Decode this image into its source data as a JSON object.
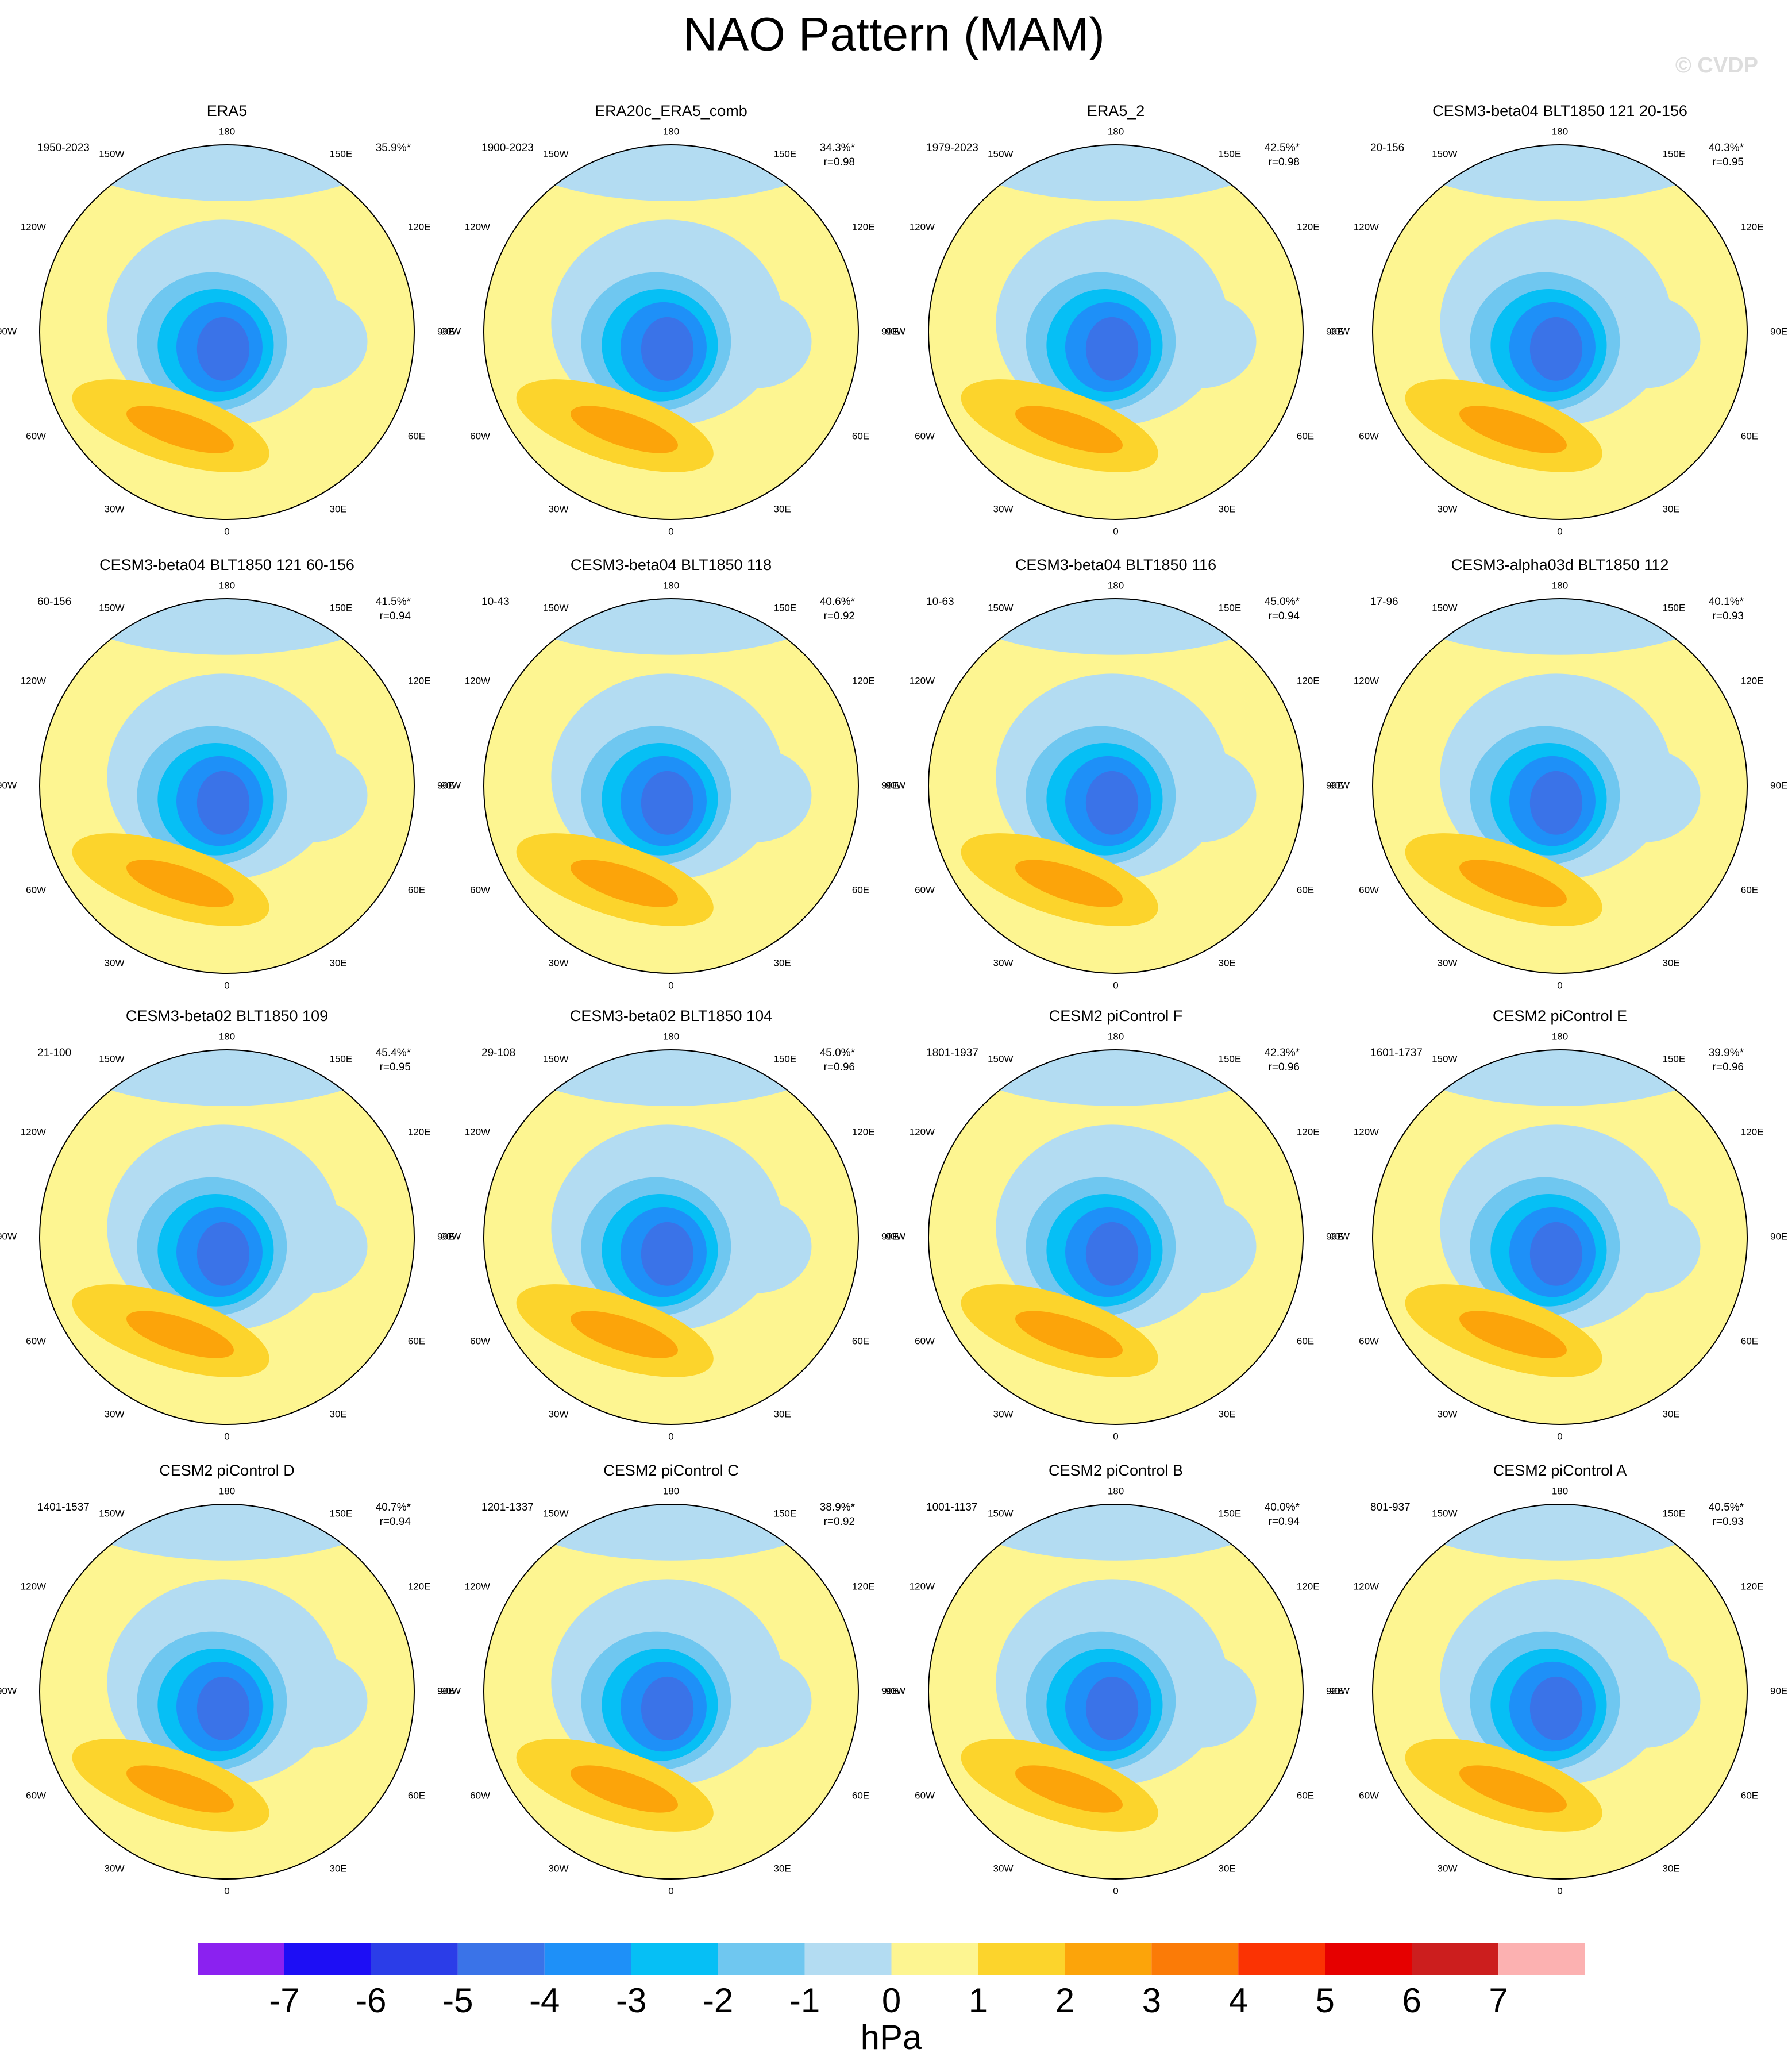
{
  "title": "NAO Pattern (MAM)",
  "watermark": "© CVDP",
  "lon_labels": [
    "0",
    "30E",
    "60E",
    "90E",
    "120E",
    "150E",
    "180",
    "150W",
    "120W",
    "90W",
    "60W",
    "30W"
  ],
  "panels": [
    {
      "title": "ERA5",
      "period": "1950-2023",
      "variance": "35.9%*"
    },
    {
      "title": "ERA20c_ERA5_comb",
      "period": "1900-2023",
      "variance": "34.3%*",
      "r": "r=0.98"
    },
    {
      "title": "ERA5_2",
      "period": "1979-2023",
      "variance": "42.5%*",
      "r": "r=0.98"
    },
    {
      "title": "CESM3-beta04 BLT1850 121 20-156",
      "period": "20-156",
      "variance": "40.3%*",
      "r": "r=0.95"
    },
    {
      "title": "CESM3-beta04 BLT1850 121 60-156",
      "period": "60-156",
      "variance": "41.5%*",
      "r": "r=0.94"
    },
    {
      "title": "CESM3-beta04 BLT1850 118",
      "period": "10-43",
      "variance": "40.6%*",
      "r": "r=0.92"
    },
    {
      "title": "CESM3-beta04 BLT1850 116",
      "period": "10-63",
      "variance": "45.0%*",
      "r": "r=0.94"
    },
    {
      "title": "CESM3-alpha03d BLT1850 112",
      "period": "17-96",
      "variance": "40.1%*",
      "r": "r=0.93"
    },
    {
      "title": "CESM3-beta02 BLT1850 109",
      "period": "21-100",
      "variance": "45.4%*",
      "r": "r=0.95"
    },
    {
      "title": "CESM3-beta02 BLT1850 104",
      "period": "29-108",
      "variance": "45.0%*",
      "r": "r=0.96"
    },
    {
      "title": "CESM2 piControl F",
      "period": "1801-1937",
      "variance": "42.3%*",
      "r": "r=0.96"
    },
    {
      "title": "CESM2 piControl E",
      "period": "1601-1737",
      "variance": "39.9%*",
      "r": "r=0.96"
    },
    {
      "title": "CESM2 piControl D",
      "period": "1401-1537",
      "variance": "40.7%*",
      "r": "r=0.94"
    },
    {
      "title": "CESM2 piControl C",
      "period": "1201-1337",
      "variance": "38.9%*",
      "r": "r=0.92"
    },
    {
      "title": "CESM2 piControl B",
      "period": "1001-1137",
      "variance": "40.0%*",
      "r": "r=0.94"
    },
    {
      "title": "CESM2 piControl A",
      "period": "801-937",
      "variance": "40.5%*",
      "r": "r=0.93"
    }
  ],
  "colorbar": {
    "colors": [
      "#8b21f0",
      "#1d0ef5",
      "#2b3de8",
      "#3a73e8",
      "#1e90f8",
      "#06bff5",
      "#6fc7f0",
      "#b3dcf2",
      "#fdf591",
      "#fcd42c",
      "#fca40a",
      "#fb7b07",
      "#fb3303",
      "#e60000",
      "#cc1e1e",
      "#fcb1b1"
    ],
    "ticks": [
      -7,
      -6,
      -5,
      -4,
      -3,
      -2,
      -1,
      0,
      1,
      2,
      3,
      4,
      5,
      6,
      7
    ],
    "unit": "hPa"
  }
}
